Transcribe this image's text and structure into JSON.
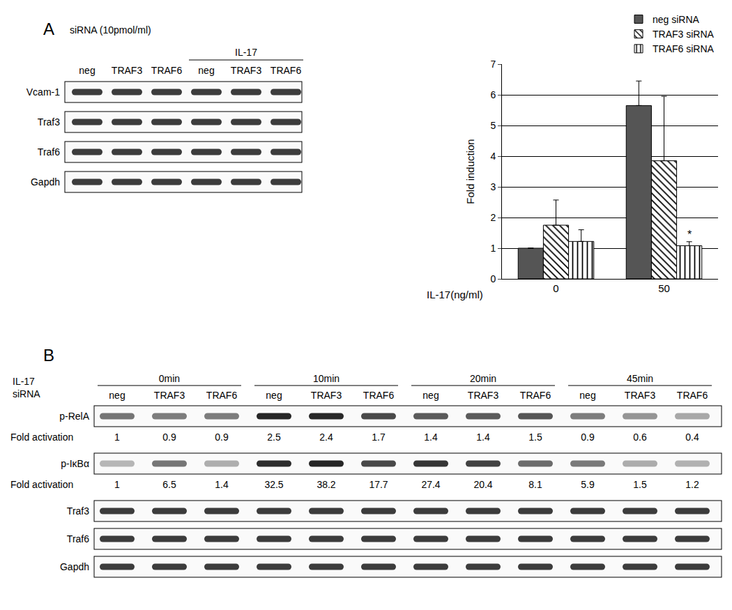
{
  "panel_a": {
    "label": "A",
    "treatment": "siRNA (10pmol/ml)",
    "group_label": "IL-17",
    "lanes": [
      "neg",
      "TRAF3",
      "TRAF6",
      "neg",
      "TRAF3",
      "TRAF6"
    ],
    "rows": [
      "Vcam-1",
      "Traf3",
      "Traf6",
      "Gapdh"
    ]
  },
  "chart_data": {
    "type": "bar",
    "categories": [
      "0",
      "50"
    ],
    "x_label": "IL-17(ng/ml)",
    "y_label": "Fold induction",
    "ylim": [
      0,
      7
    ],
    "yticks": [
      0,
      1,
      2,
      3,
      4,
      5,
      6,
      7
    ],
    "grid": true,
    "legend": "top-right",
    "series": [
      {
        "name": "neg siRNA",
        "color": "#555555",
        "marker": "solid",
        "values": [
          1,
          5.65
        ],
        "errors": [
          0,
          0.8
        ]
      },
      {
        "name": "TRAF3 siRNA",
        "color": "#000000",
        "marker": "diagonal",
        "values": [
          1.75,
          3.85
        ],
        "errors": [
          0.82,
          2.1
        ]
      },
      {
        "name": "TRAF6 siRNA",
        "color": "#000000",
        "marker": "vertical",
        "values": [
          1.22,
          1.08
        ],
        "errors": [
          0.38,
          0.13
        ]
      }
    ],
    "annotations": [
      {
        "text": "*",
        "category": "50",
        "series": "TRAF6 siRNA"
      }
    ]
  },
  "panel_b": {
    "label": "B",
    "treatment_label": "IL-17",
    "sirna_label": "siRNA",
    "timepoints": [
      "0min",
      "10min",
      "20min",
      "45min"
    ],
    "lanes": [
      "neg",
      "TRAF3",
      "TRAF6"
    ],
    "rows": [
      {
        "name": "p-RelA",
        "quant_label": "Fold activation",
        "values": [
          1,
          0.9,
          0.9,
          2.5,
          2.4,
          1.7,
          1.4,
          1.4,
          1.5,
          0.9,
          0.6,
          0.4
        ]
      },
      {
        "name": "p-IκBα",
        "quant_label": "Fold activation",
        "values": [
          1,
          6.5,
          1.4,
          32.5,
          38.2,
          17.7,
          27.4,
          20.4,
          8.1,
          5.9,
          1.5,
          1.2
        ]
      },
      {
        "name": "Traf3"
      },
      {
        "name": "Traf6"
      },
      {
        "name": "Gapdh"
      }
    ]
  }
}
